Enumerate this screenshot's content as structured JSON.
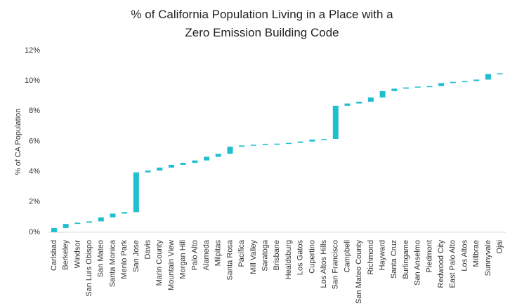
{
  "chart_data": {
    "type": "waterfall",
    "title": "% of California Population Living in a Place with a Zero Emission Building Code",
    "y_label": "% of CA Population",
    "categories": [
      "Carlsbad",
      "Berkeley",
      "Windsor",
      "San Luis Obispo",
      "San Mateo",
      "Santa Monica",
      "Menlo Park",
      "San Jose",
      "Davis",
      "Marin County",
      "Mountain View",
      "Morgan Hill",
      "Palo Alto",
      "Alameda",
      "Milpitas",
      "Santa Rosa",
      "Pacifica",
      "Mill Valley",
      "Saratoga",
      "Brisbane",
      "Healdsburg",
      "Los Gatos",
      "Cupertino",
      "Los Altos Hills",
      "San Francisco",
      "Campbell",
      "San Mateo County",
      "Richmond",
      "Hayward",
      "Santa Cruz",
      "Burlingame",
      "San Anselmo",
      "Piedmont",
      "Redwood City",
      "East Palo Alto",
      "Los Altos",
      "Millbrae",
      "Sunnyvale",
      "Ojai"
    ],
    "values": [
      0.28,
      0.27,
      0.08,
      0.09,
      0.26,
      0.25,
      0.1,
      2.62,
      0.12,
      0.2,
      0.18,
      0.13,
      0.16,
      0.24,
      0.2,
      0.47,
      0.08,
      0.05,
      0.06,
      0.01,
      0.05,
      0.09,
      0.13,
      0.04,
      2.19,
      0.15,
      0.12,
      0.28,
      0.42,
      0.16,
      0.08,
      0.06,
      0.03,
      0.2,
      0.08,
      0.05,
      0.1,
      0.37,
      0.05
    ],
    "color": "#1fbfcf",
    "ylim": [
      0,
      12
    ],
    "yticks": [
      {
        "value": 0,
        "label": "0%"
      },
      {
        "value": 2,
        "label": "2%"
      },
      {
        "value": 4,
        "label": "4%"
      },
      {
        "value": 6,
        "label": "6%"
      },
      {
        "value": 8,
        "label": "8%"
      },
      {
        "value": 10,
        "label": "10%"
      },
      {
        "value": 12,
        "label": "12%"
      }
    ],
    "grid": false
  }
}
